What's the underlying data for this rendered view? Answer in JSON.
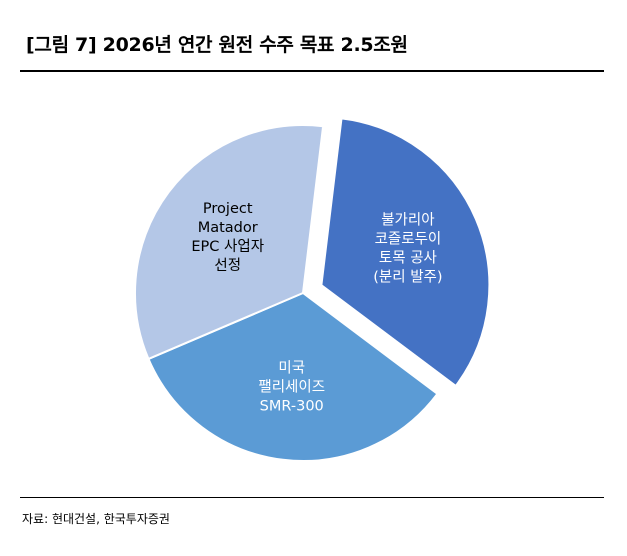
{
  "title": "[그림 7] 2026년 연간 원전 수주 목표 2.5조원",
  "source": "자료: 현대건설, 한국투자증권",
  "chart_data": {
    "type": "pie",
    "title": "[그림 7] 2026년 연간 원전 수주 목표 2.5조원",
    "legend": "none",
    "slices": [
      {
        "label": "불가리아 코즐로두이 토목 공사 (분리 발주)",
        "lines": [
          "불가리아",
          "코즐로두이",
          "토목 공사",
          "(분리 발주)"
        ],
        "value": 1,
        "color": "#4472C4",
        "text_color": "#FFFFFF",
        "exploded": true
      },
      {
        "label": "미국 팰리세이즈 SMR-300",
        "lines": [
          "미국",
          "팰리세이즈",
          "SMR-300"
        ],
        "value": 1,
        "color": "#5B9BD5",
        "text_color": "#FFFFFF",
        "exploded": false
      },
      {
        "label": "Project Matador EPC 사업자 선정",
        "lines": [
          "Project",
          "Matador",
          "EPC 사업자",
          "선정"
        ],
        "value": 1,
        "color": "#B4C7E7",
        "text_color": "#000000",
        "exploded": false
      }
    ]
  }
}
